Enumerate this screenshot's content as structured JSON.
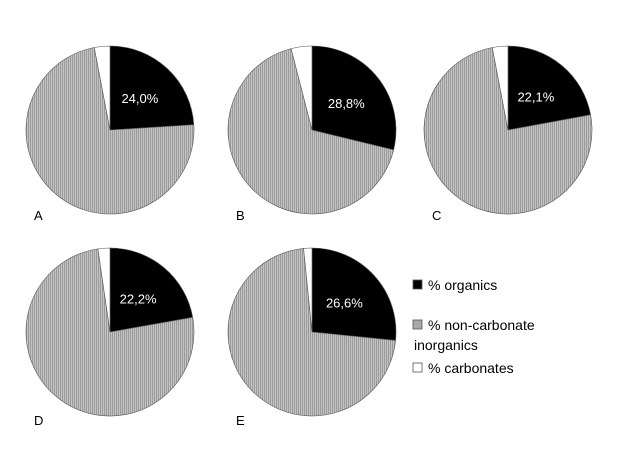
{
  "chart_data": {
    "type": "pie",
    "title": "",
    "legend": {
      "placement": "right",
      "entries": [
        {
          "key": "organics",
          "label": "% organics",
          "color": "#000000"
        },
        {
          "key": "inorganics",
          "label_lines": [
            "% non-carbonate",
            "inorganics"
          ],
          "color": "#b3b3b3"
        },
        {
          "key": "carbonates",
          "label": "% carbonates",
          "color": "#ffffff"
        }
      ]
    },
    "series_order": [
      "organics",
      "inorganics",
      "carbonates"
    ],
    "pies": [
      {
        "panel": "A",
        "organics": 24.0,
        "inorganics": 73.0,
        "carbonates": 3.0,
        "label": "24,0%"
      },
      {
        "panel": "B",
        "organics": 28.8,
        "inorganics": 67.2,
        "carbonates": 4.0,
        "label": "28,8%"
      },
      {
        "panel": "C",
        "organics": 22.1,
        "inorganics": 74.9,
        "carbonates": 3.0,
        "label": "22,1%"
      },
      {
        "panel": "D",
        "organics": 22.2,
        "inorganics": 75.5,
        "carbonates": 2.3,
        "label": "22,2%"
      },
      {
        "panel": "E",
        "organics": 26.6,
        "inorganics": 71.8,
        "carbonates": 1.6,
        "label": "26,6%"
      }
    ]
  }
}
